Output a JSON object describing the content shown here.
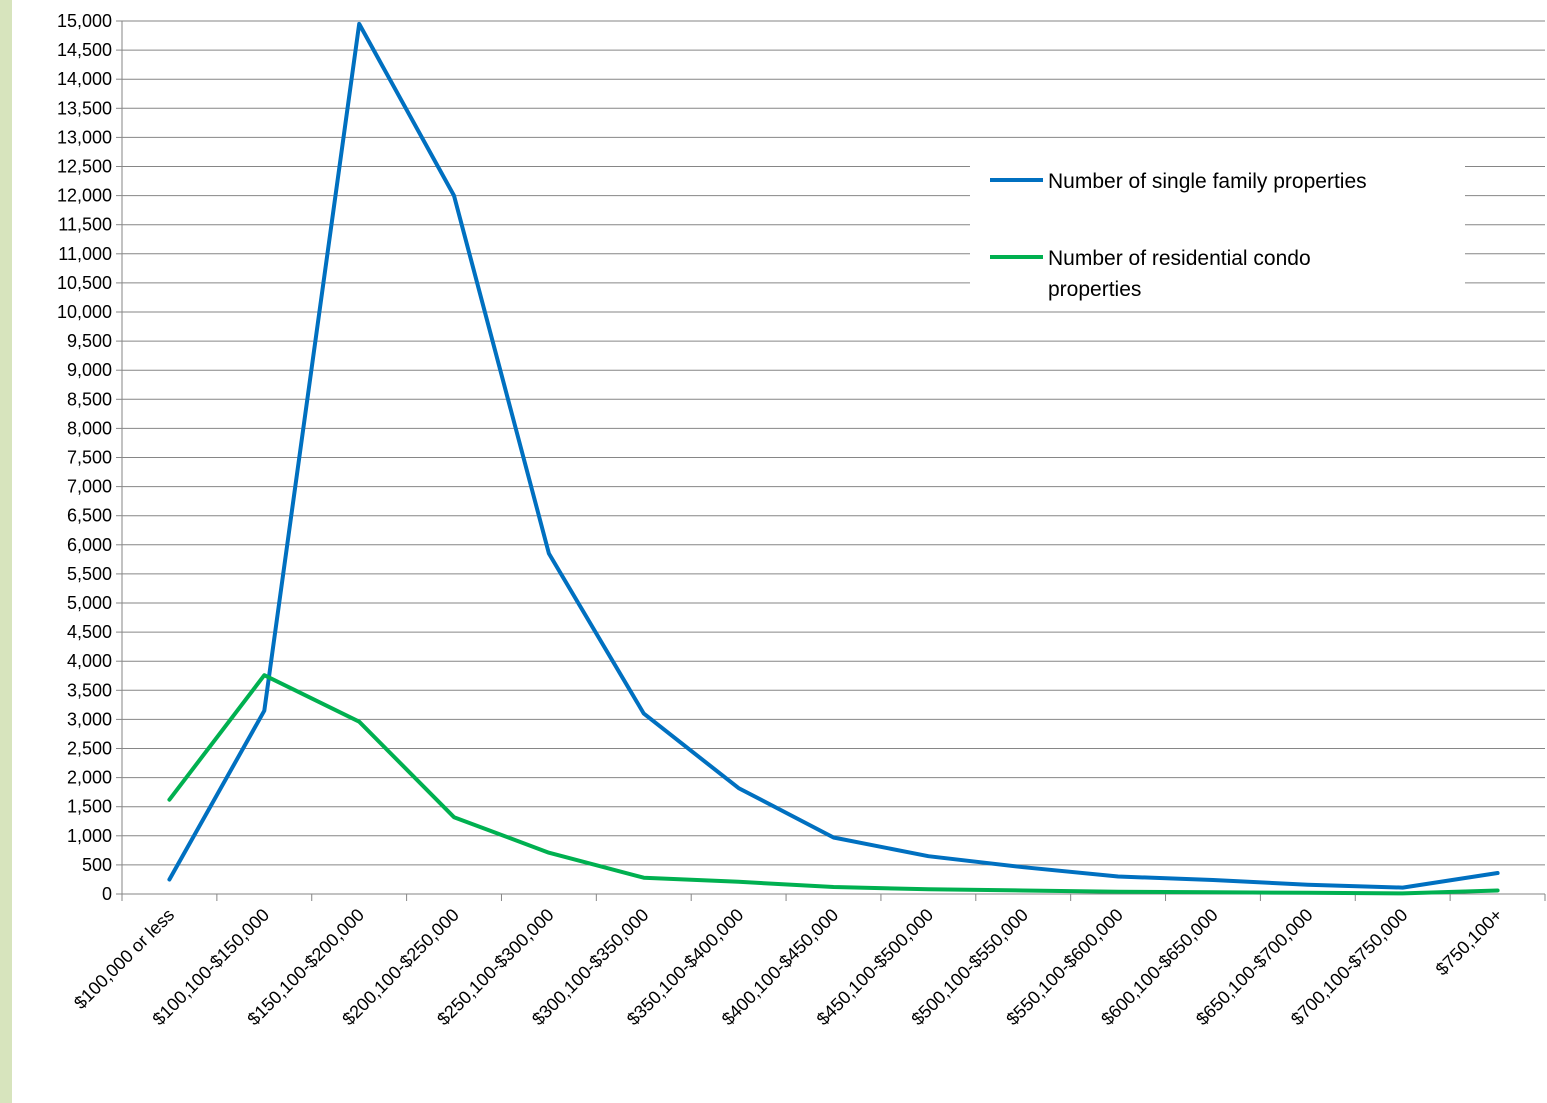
{
  "chart_data": {
    "type": "line",
    "title": "",
    "xlabel": "",
    "ylabel": "",
    "categories": [
      "$100,000 or less",
      "$100,100-$150,000",
      "$150,100-$200,000",
      "$200,100-$250,000",
      "$250,100-$300,000",
      "$300,100-$350,000",
      "$350,100-$400,000",
      "$400,100-$450,000",
      "$450,100-$500,000",
      "$500,100-$550,000",
      "$550,100-$600,000",
      "$600,100-$650,000",
      "$650,100-$700,000",
      "$700,100-$750,000",
      "$750,100+"
    ],
    "series": [
      {
        "name": "Number of single family properties",
        "color": "#0070c0",
        "values": [
          250,
          3150,
          14950,
          12000,
          5850,
          3100,
          1820,
          970,
          650,
          460,
          300,
          240,
          160,
          110,
          360
        ]
      },
      {
        "name": "Number of residential condo properties",
        "color": "#00b050",
        "values": [
          1620,
          3760,
          2960,
          1320,
          710,
          280,
          210,
          120,
          80,
          60,
          40,
          30,
          20,
          10,
          60
        ]
      }
    ],
    "ylim": [
      0,
      15000
    ],
    "ytick_step": 500,
    "grid": true,
    "legend_position": "top-right"
  }
}
